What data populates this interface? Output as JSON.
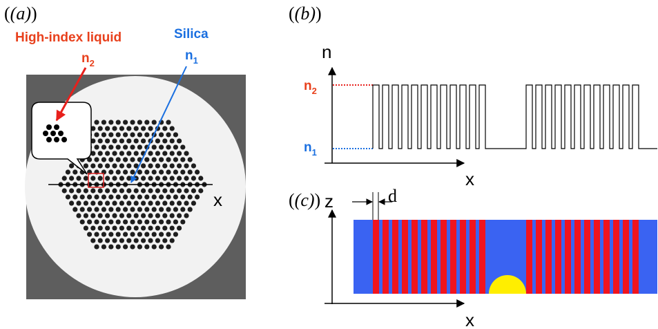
{
  "panels": {
    "a": {
      "label": "(a)",
      "liquid": "High-index liquid",
      "silica": "Silica",
      "n2": {
        "base": "n",
        "sub": "2"
      },
      "n1": {
        "base": "n",
        "sub": "1"
      },
      "x_axis": "x"
    },
    "b": {
      "label": "(b)",
      "y_axis": "n",
      "x_axis": "x",
      "n2": {
        "base": "n",
        "sub": "2"
      },
      "n1": {
        "base": "n",
        "sub": "1"
      }
    },
    "c": {
      "label": "(c)",
      "y_axis": "z",
      "x_axis": "x",
      "spacing": "d"
    }
  }
}
